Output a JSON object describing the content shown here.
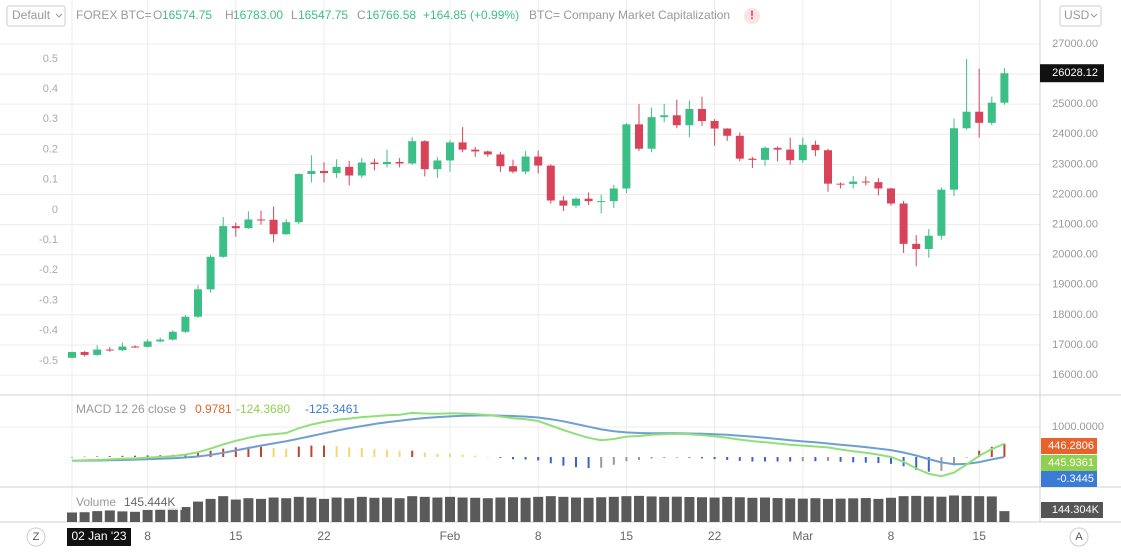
{
  "header": {
    "preset": "Default",
    "symbol": "FOREX BTC=",
    "o_label": "O",
    "o_value": "16574.75",
    "h_label": "H",
    "h_value": "16783.00",
    "l_label": "L",
    "l_value": "16547.75",
    "c_label": "C",
    "c_value": "16766.58",
    "change": "+164.85 (+0.99%)",
    "overlay": "BTC= Company Market Capitalization",
    "warning": "!",
    "currency": "USD",
    "zoom_left": "Z",
    "zoom_right": "A"
  },
  "chart_data": {
    "type": "candlestick",
    "categories": [
      "02 Jan '23",
      null,
      null,
      null,
      null,
      null,
      "8",
      null,
      null,
      null,
      null,
      null,
      null,
      "15",
      null,
      null,
      null,
      null,
      null,
      null,
      "22",
      null,
      null,
      null,
      null,
      null,
      null,
      null,
      null,
      null,
      "Feb",
      null,
      null,
      null,
      null,
      null,
      null,
      "8",
      null,
      null,
      null,
      null,
      null,
      null,
      "15",
      null,
      null,
      null,
      null,
      null,
      null,
      "22",
      null,
      null,
      null,
      null,
      null,
      null,
      "Mar",
      null,
      null,
      null,
      null,
      null,
      null,
      "8",
      null,
      null,
      null,
      null,
      null,
      null,
      "15",
      null,
      null
    ],
    "open": [
      16575,
      16767,
      16670,
      16850,
      16830,
      16950,
      16940,
      17120,
      17180,
      17440,
      17940,
      18850,
      19930,
      20950,
      20880,
      21170,
      21160,
      20680,
      21080,
      22680,
      22780,
      22710,
      22920,
      22630,
      23060,
      23010,
      23080,
      23030,
      23770,
      22840,
      23130,
      23730,
      23490,
      23430,
      23330,
      22940,
      22760,
      23260,
      22960,
      21800,
      21630,
      21860,
      21780,
      21780,
      22200,
      24330,
      23520,
      24570,
      24630,
      24300,
      24840,
      24440,
      24190,
      23950,
      23190,
      23150,
      23550,
      23490,
      23140,
      23650,
      23470,
      22360,
      22350,
      22430,
      22410,
      22200,
      21700,
      20360,
      20190,
      20630,
      22160,
      24200,
      24750,
      24380,
      25050
    ],
    "high": [
      16783,
      16800,
      16990,
      16930,
      17080,
      16990,
      17190,
      17250,
      17490,
      18000,
      18980,
      19990,
      21250,
      21060,
      21440,
      21470,
      21600,
      21180,
      22700,
      23300,
      23070,
      23170,
      23120,
      23210,
      23190,
      23490,
      23210,
      23900,
      23800,
      23240,
      23800,
      24240,
      23580,
      23460,
      23420,
      23160,
      23440,
      23460,
      23000,
      21940,
      21900,
      22070,
      21990,
      22320,
      24370,
      25000,
      24890,
      25010,
      25150,
      25120,
      25250,
      24500,
      24200,
      24060,
      23250,
      23600,
      23600,
      23890,
      23890,
      23790,
      23520,
      22400,
      22610,
      22600,
      22540,
      22220,
      21790,
      20650,
      20850,
      22240,
      24520,
      26500,
      26180,
      25250,
      26200
    ],
    "low": [
      16548,
      16620,
      16650,
      16780,
      16800,
      16900,
      16920,
      17090,
      17150,
      17400,
      17900,
      18740,
      19900,
      20600,
      20860,
      21000,
      20410,
      20660,
      21020,
      22400,
      22400,
      22550,
      22300,
      22550,
      22800,
      22900,
      22900,
      22990,
      22600,
      22550,
      22750,
      23400,
      23250,
      23250,
      22750,
      22700,
      22670,
      22700,
      21700,
      21450,
      21560,
      21650,
      21370,
      21550,
      22050,
      23450,
      23400,
      24400,
      24200,
      23900,
      24280,
      23620,
      23780,
      23100,
      22880,
      22950,
      23100,
      22990,
      23050,
      23270,
      22090,
      22200,
      22200,
      22300,
      21970,
      21630,
      20060,
      19620,
      19900,
      20500,
      21950,
      24150,
      23890,
      24300,
      24980
    ],
    "close": [
      16767,
      16670,
      16850,
      16830,
      16950,
      16940,
      17120,
      17180,
      17440,
      17940,
      18850,
      19930,
      20950,
      20880,
      21170,
      21160,
      20680,
      21080,
      22680,
      22780,
      22710,
      22920,
      22630,
      23060,
      23010,
      23080,
      23030,
      23770,
      22840,
      23130,
      23730,
      23490,
      23430,
      23330,
      22940,
      22760,
      23260,
      22960,
      21800,
      21630,
      21860,
      21780,
      21780,
      22200,
      24330,
      23520,
      24570,
      24630,
      24300,
      24840,
      24440,
      24190,
      23950,
      23190,
      23150,
      23550,
      23490,
      23140,
      23650,
      23470,
      22360,
      22350,
      22430,
      22410,
      22200,
      21700,
      20360,
      20190,
      20630,
      22160,
      24200,
      24750,
      24380,
      25050,
      26028.12
    ],
    "up_color": "#3cbf86",
    "down_color": "#d9435a",
    "ylim": [
      15340,
      28460
    ],
    "yticks": [
      {
        "value": 16000,
        "label": "16000.00"
      },
      {
        "value": 17000,
        "label": "17000.00"
      },
      {
        "value": 18000,
        "label": "18000.00"
      },
      {
        "value": 19000,
        "label": "19000.00"
      },
      {
        "value": 20000,
        "label": "20000.00"
      },
      {
        "value": 21000,
        "label": "21000.00"
      },
      {
        "value": 22000,
        "label": "22000.00"
      },
      {
        "value": 23000,
        "label": "23000.00"
      },
      {
        "value": 24000,
        "label": "24000.00"
      },
      {
        "value": 25000,
        "label": "25000.00"
      },
      {
        "value": 26000,
        "label": "26000.00"
      },
      {
        "value": 27000,
        "label": "27000.00"
      }
    ],
    "left_ylim": [
      -0.613,
      0.695
    ],
    "left_yticks": [
      0.5,
      0.4,
      0.3,
      0.2,
      0.1,
      0,
      -0.1,
      -0.2,
      -0.3,
      -0.4,
      -0.5
    ],
    "last_price": 26028.12,
    "grid": true,
    "macd": {
      "legend": "MACD 12 26 close 9",
      "legend_values": [
        "0.9781",
        "-124.3680",
        "-125.3461"
      ],
      "ylim": [
        -1000,
        2000
      ],
      "yticks": [
        {
          "value": 1000,
          "label": "1000.0000"
        }
      ],
      "macd_line": {
        "color": "#8fe07a",
        "values": [
          -124.368,
          -110,
          -95,
          -80,
          -60,
          -45,
          -20,
          0,
          30,
          80,
          160,
          280,
          420,
          540,
          640,
          720,
          760,
          800,
          960,
          1080,
          1170,
          1240,
          1280,
          1330,
          1360,
          1390,
          1410,
          1470,
          1450,
          1440,
          1460,
          1450,
          1430,
          1400,
          1350,
          1290,
          1260,
          1200,
          1050,
          900,
          760,
          640,
          560,
          600,
          680,
          700,
          740,
          760,
          770,
          760,
          730,
          690,
          640,
          580,
          530,
          490,
          450,
          410,
          380,
          350,
          320,
          250,
          190,
          140,
          80,
          0,
          -160,
          -380,
          -560,
          -640,
          -520,
          -250,
          40,
          260,
          445.9361
        ]
      },
      "signal_line": {
        "color": "#6f9fd0",
        "values": [
          -125.3461,
          -122,
          -117,
          -110,
          -100,
          -89,
          -75,
          -60,
          -42,
          -18,
          18,
          70,
          140,
          220,
          300,
          380,
          455,
          525,
          610,
          700,
          790,
          880,
          960,
          1030,
          1100,
          1160,
          1210,
          1260,
          1300,
          1330,
          1355,
          1375,
          1385,
          1390,
          1380,
          1365,
          1345,
          1315,
          1260,
          1190,
          1100,
          1010,
          920,
          860,
          820,
          800,
          790,
          790,
          790,
          785,
          775,
          760,
          740,
          710,
          680,
          640,
          600,
          560,
          520,
          490,
          450,
          410,
          370,
          330,
          280,
          230,
          150,
          50,
          -70,
          -180,
          -240,
          -230,
          -170,
          -80,
          -0.3445
        ]
      },
      "histogram": {
        "values": [
          0.9781,
          12,
          22,
          30,
          40,
          44,
          55,
          60,
          72,
          98,
          142,
          210,
          280,
          320,
          340,
          340,
          305,
          275,
          350,
          380,
          380,
          360,
          320,
          300,
          260,
          230,
          200,
          210,
          150,
          110,
          105,
          75,
          45,
          10,
          -30,
          -75,
          -85,
          -115,
          -210,
          -290,
          -340,
          -370,
          -360,
          -260,
          -140,
          -100,
          -50,
          -30,
          -20,
          -25,
          -45,
          -70,
          -100,
          -130,
          -150,
          -150,
          -150,
          -150,
          -140,
          -140,
          -130,
          -160,
          -180,
          -190,
          -200,
          -230,
          -310,
          -430,
          -490,
          -460,
          -280,
          -20,
          210,
          340,
          446.2806
        ],
        "color_up": "#c0442a",
        "color_fade": "#f5d76e",
        "color_down": "#3d5fd9",
        "color_recover": "#999999",
        "badge_color": "#e8622c"
      },
      "macd_badge_color": "#8fd14f",
      "signal_badge_color": "#3a7bd5"
    },
    "volume": {
      "legend": "Volume",
      "legend_value": "145.444K",
      "last_label": "144.304K",
      "color": "#5a5a5a",
      "ylim": [
        0,
        250
      ],
      "values": [
        70,
        72,
        80,
        85,
        78,
        75,
        90,
        95,
        100,
        110,
        150,
        170,
        190,
        165,
        175,
        170,
        180,
        175,
        185,
        180,
        170,
        180,
        175,
        185,
        178,
        180,
        175,
        190,
        185,
        180,
        185,
        180,
        178,
        175,
        180,
        182,
        178,
        185,
        190,
        185,
        180,
        178,
        182,
        185,
        190,
        192,
        188,
        185,
        186,
        184,
        182,
        180,
        185,
        182,
        178,
        180,
        176,
        174,
        172,
        175,
        170,
        172,
        174,
        176,
        170,
        178,
        190,
        192,
        188,
        186,
        195,
        192,
        190,
        188,
        80
      ]
    }
  }
}
